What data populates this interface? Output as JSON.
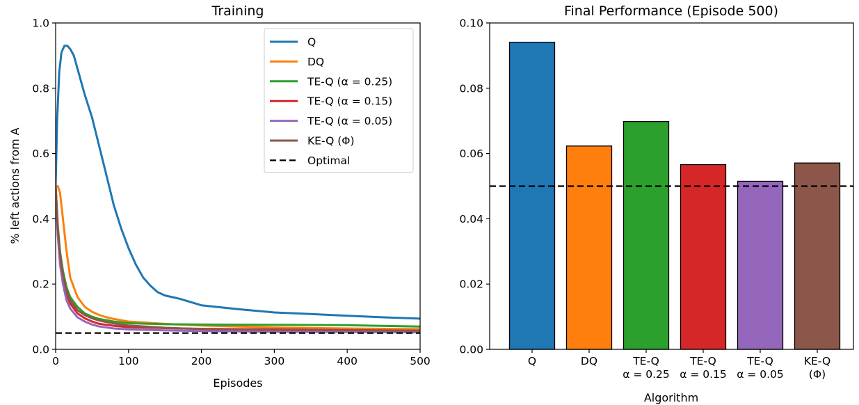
{
  "chart_data": [
    {
      "type": "line",
      "title": "Training",
      "xlabel": "Episodes",
      "ylabel": "% left actions from A",
      "xlim": [
        0,
        500
      ],
      "ylim": [
        0,
        1.0
      ],
      "xticks": [
        "0",
        "100",
        "200",
        "300",
        "400",
        "500"
      ],
      "yticks": [
        "0.0",
        "0.2",
        "0.4",
        "0.6",
        "0.8",
        "1.0"
      ],
      "legend_position": "top-right",
      "series": [
        {
          "name": "Q",
          "color": "#1f77b4",
          "x": [
            0,
            2,
            5,
            8,
            12,
            16,
            20,
            25,
            30,
            40,
            50,
            60,
            70,
            80,
            90,
            100,
            110,
            120,
            130,
            140,
            150,
            170,
            200,
            250,
            300,
            350,
            400,
            450,
            500
          ],
          "y": [
            0.5,
            0.7,
            0.85,
            0.91,
            0.93,
            0.93,
            0.92,
            0.9,
            0.86,
            0.78,
            0.71,
            0.62,
            0.53,
            0.44,
            0.37,
            0.31,
            0.26,
            0.22,
            0.195,
            0.175,
            0.165,
            0.155,
            0.135,
            0.123,
            0.113,
            0.108,
            0.103,
            0.098,
            0.094
          ]
        },
        {
          "name": "DQ",
          "color": "#ff7f0e",
          "x": [
            0,
            3,
            6,
            10,
            15,
            20,
            30,
            40,
            50,
            60,
            70,
            80,
            100,
            150,
            200,
            300,
            400,
            500
          ],
          "y": [
            0.5,
            0.5,
            0.48,
            0.4,
            0.3,
            0.22,
            0.16,
            0.13,
            0.115,
            0.105,
            0.098,
            0.093,
            0.085,
            0.078,
            0.073,
            0.067,
            0.064,
            0.062
          ]
        },
        {
          "name": "TE-Q (α = 0.25)",
          "color": "#2ca02c",
          "x": [
            0,
            3,
            6,
            10,
            15,
            20,
            30,
            40,
            50,
            60,
            80,
            100,
            150,
            200,
            300,
            400,
            500
          ],
          "y": [
            0.5,
            0.38,
            0.3,
            0.24,
            0.19,
            0.16,
            0.13,
            0.11,
            0.1,
            0.093,
            0.085,
            0.08,
            0.077,
            0.076,
            0.075,
            0.074,
            0.07
          ]
        },
        {
          "name": "TE-Q (α = 0.15)",
          "color": "#d62728",
          "x": [
            0,
            3,
            6,
            10,
            15,
            20,
            30,
            40,
            50,
            60,
            80,
            100,
            150,
            200,
            300,
            400,
            500
          ],
          "y": [
            0.5,
            0.37,
            0.28,
            0.22,
            0.17,
            0.14,
            0.11,
            0.095,
            0.085,
            0.078,
            0.072,
            0.068,
            0.065,
            0.063,
            0.061,
            0.059,
            0.057
          ]
        },
        {
          "name": "TE-Q (α = 0.05)",
          "color": "#9467bd",
          "x": [
            0,
            3,
            6,
            10,
            15,
            20,
            30,
            40,
            50,
            60,
            80,
            100,
            150,
            200,
            300,
            400,
            500
          ],
          "y": [
            0.5,
            0.35,
            0.26,
            0.2,
            0.15,
            0.125,
            0.098,
            0.085,
            0.076,
            0.07,
            0.064,
            0.061,
            0.058,
            0.056,
            0.054,
            0.053,
            0.052
          ]
        },
        {
          "name": "KE-Q (Φ)",
          "color": "#8c564b",
          "x": [
            0,
            3,
            6,
            10,
            15,
            20,
            30,
            40,
            50,
            60,
            80,
            100,
            150,
            200,
            300,
            400,
            500
          ],
          "y": [
            0.5,
            0.37,
            0.29,
            0.23,
            0.18,
            0.15,
            0.12,
            0.105,
            0.095,
            0.088,
            0.079,
            0.073,
            0.066,
            0.062,
            0.059,
            0.058,
            0.057
          ]
        },
        {
          "name": "Optimal",
          "color": "#000000",
          "dashed": true,
          "x": [
            0,
            500
          ],
          "y": [
            0.05,
            0.05
          ]
        }
      ]
    },
    {
      "type": "bar",
      "title": "Final Performance (Episode 500)",
      "xlabel": "Algorithm",
      "ylabel": "",
      "ylim": [
        0,
        0.1
      ],
      "yticks": [
        "0.00",
        "0.02",
        "0.04",
        "0.06",
        "0.08",
        "0.10"
      ],
      "categories": [
        [
          "Q"
        ],
        [
          "DQ"
        ],
        [
          "TE-Q",
          "α = 0.25"
        ],
        [
          "TE-Q",
          "α = 0.15"
        ],
        [
          "TE-Q",
          "α = 0.05"
        ],
        [
          "KE-Q",
          "(Φ)"
        ]
      ],
      "values": [
        0.0941,
        0.0623,
        0.0698,
        0.0566,
        0.0515,
        0.0571
      ],
      "colors": [
        "#1f77b4",
        "#ff7f0e",
        "#2ca02c",
        "#d62728",
        "#9467bd",
        "#8c564b"
      ],
      "reference_line": 0.05
    }
  ]
}
